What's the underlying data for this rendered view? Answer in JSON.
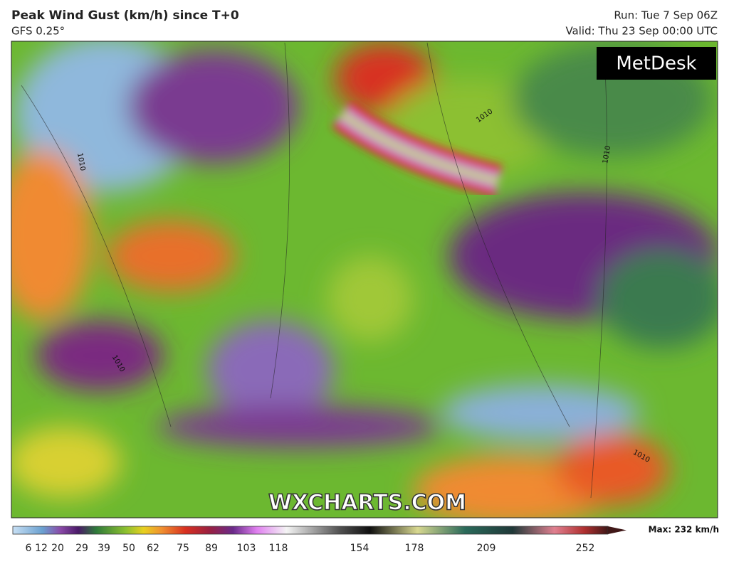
{
  "header": {
    "title": "Peak Wind Gust (km/h) since T+0",
    "model": "GFS 0.25°",
    "run": "Run: Tue 7 Sep 06Z",
    "valid": "Valid: Thu 23 Sep 00:00 UTC"
  },
  "map": {
    "logo": "MetDesk",
    "watermark": "WXCHARTS.COM",
    "contour_labels": [
      "1010",
      "1010",
      "1010",
      "1010",
      "1010"
    ]
  },
  "colorbar": {
    "ticks": [
      "6",
      "12",
      "20",
      "29",
      "39",
      "50",
      "62",
      "75",
      "89",
      "103",
      "118",
      "154",
      "178",
      "209",
      "252"
    ],
    "max_label": "Max: 232 km/h"
  }
}
